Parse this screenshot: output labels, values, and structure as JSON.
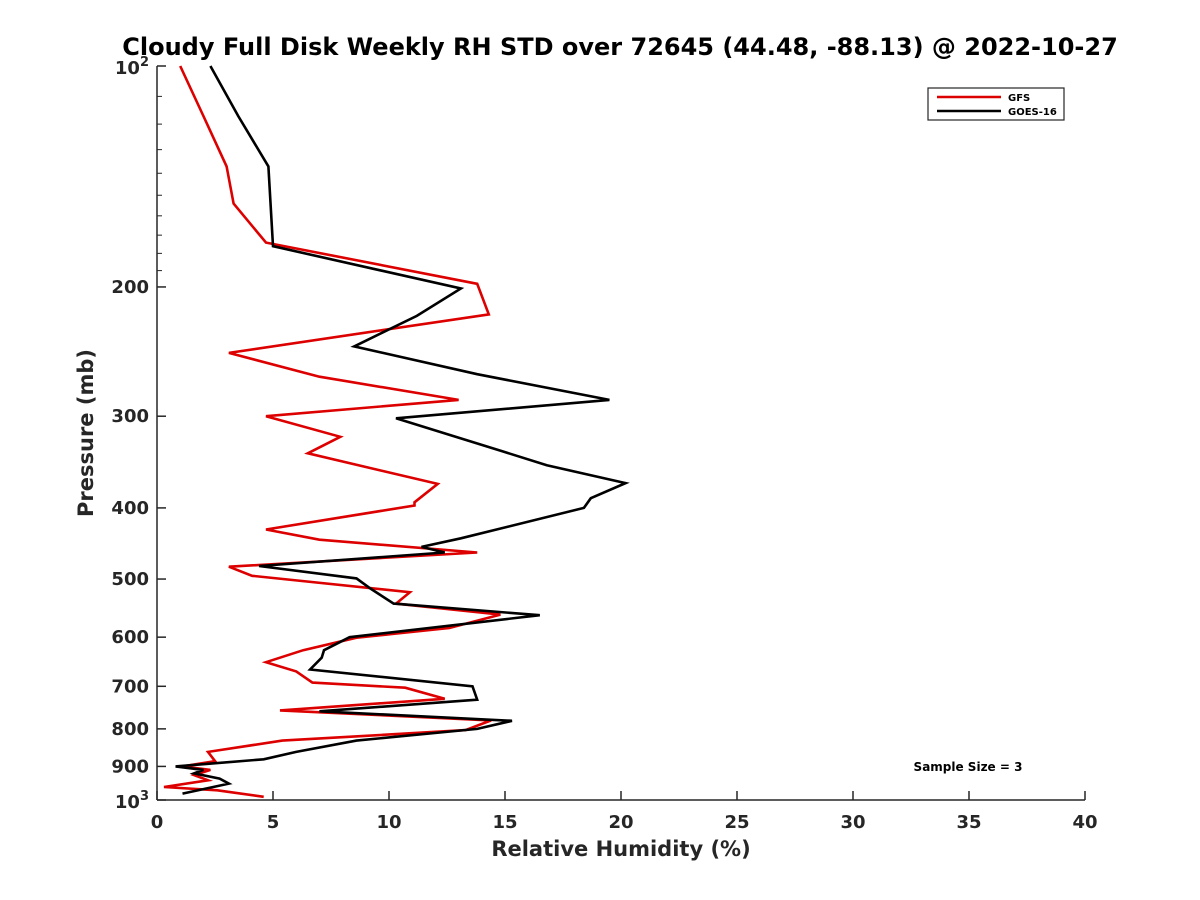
{
  "chart_data": {
    "type": "line",
    "title": "Cloudy Full Disk Weekly RH STD over 72645 (44.48, -88.13) @ 2022-10-27",
    "xlabel": "Relative Humidity (%)",
    "ylabel": "Pressure (mb)",
    "xlim": [
      0,
      40
    ],
    "ylim": [
      100,
      1000
    ],
    "yscale": "log",
    "y_reversed": true,
    "grid": false,
    "legend_position": "top-right",
    "x_ticks": [
      "0",
      "5",
      "10",
      "15",
      "20",
      "25",
      "30",
      "35",
      "40"
    ],
    "y_ticks": [
      {
        "value": 200,
        "label": "200"
      },
      {
        "value": 300,
        "label": "300"
      },
      {
        "value": 400,
        "label": "400"
      },
      {
        "value": 500,
        "label": "500"
      },
      {
        "value": 600,
        "label": "600"
      },
      {
        "value": 700,
        "label": "700"
      },
      {
        "value": 800,
        "label": "800"
      },
      {
        "value": 900,
        "label": "900"
      }
    ],
    "y_ticks_pow": [
      {
        "value": 100,
        "base": "10",
        "exp": "2"
      },
      {
        "value": 1000,
        "base": "10",
        "exp": "3"
      }
    ],
    "annotation": "Sample Size = 3",
    "series": [
      {
        "name": "GFS",
        "color": "#dd0000",
        "points": [
          [
            1.0,
            100
          ],
          [
            2.0,
            117
          ],
          [
            3.0,
            137
          ],
          [
            3.3,
            154
          ],
          [
            4.7,
            174
          ],
          [
            13.8,
            198
          ],
          [
            14.3,
            218
          ],
          [
            3.1,
            246
          ],
          [
            7.0,
            265
          ],
          [
            13.0,
            285
          ],
          [
            4.7,
            300
          ],
          [
            7.9,
            320
          ],
          [
            6.5,
            337
          ],
          [
            12.1,
            371
          ],
          [
            11.1,
            393
          ],
          [
            11.1,
            397
          ],
          [
            4.7,
            428
          ],
          [
            7.0,
            442
          ],
          [
            13.8,
            460
          ],
          [
            3.1,
            481
          ],
          [
            4.1,
            495
          ],
          [
            10.9,
            521
          ],
          [
            10.3,
            540
          ],
          [
            14.8,
            559
          ],
          [
            12.6,
            583
          ],
          [
            8.6,
            601
          ],
          [
            6.3,
            625
          ],
          [
            4.7,
            649
          ],
          [
            6.0,
            668
          ],
          [
            6.7,
            692
          ],
          [
            10.7,
            703
          ],
          [
            12.4,
            728
          ],
          [
            5.3,
            755
          ],
          [
            14.4,
            779
          ],
          [
            13.3,
            803
          ],
          [
            5.4,
            830
          ],
          [
            2.2,
            860
          ],
          [
            2.5,
            885
          ],
          [
            1.1,
            900
          ],
          [
            2.3,
            910
          ],
          [
            1.6,
            925
          ],
          [
            2.2,
            940
          ],
          [
            0.3,
            960
          ],
          [
            2.6,
            970
          ],
          [
            4.6,
            990
          ]
        ]
      },
      {
        "name": "GOES-16",
        "color": "#000000",
        "points": [
          [
            2.3,
            100
          ],
          [
            3.5,
            117
          ],
          [
            4.8,
            137
          ],
          [
            5.0,
            176
          ],
          [
            13.1,
            201
          ],
          [
            11.2,
            219
          ],
          [
            8.5,
            241
          ],
          [
            13.8,
            263
          ],
          [
            19.5,
            285
          ],
          [
            10.3,
            302
          ],
          [
            14.9,
            335
          ],
          [
            16.8,
            350
          ],
          [
            20.2,
            370
          ],
          [
            18.7,
            388
          ],
          [
            18.4,
            400
          ],
          [
            13.1,
            440
          ],
          [
            11.4,
            452
          ],
          [
            12.4,
            460
          ],
          [
            4.4,
            480
          ],
          [
            8.6,
            499
          ],
          [
            9.2,
            515
          ],
          [
            10.2,
            540
          ],
          [
            16.5,
            560
          ],
          [
            8.3,
            600
          ],
          [
            7.2,
            625
          ],
          [
            7.1,
            640
          ],
          [
            6.6,
            664
          ],
          [
            13.6,
            700
          ],
          [
            13.8,
            730
          ],
          [
            7.0,
            757
          ],
          [
            15.3,
            780
          ],
          [
            13.8,
            800
          ],
          [
            8.6,
            830
          ],
          [
            6.0,
            860
          ],
          [
            4.6,
            880
          ],
          [
            0.8,
            900
          ],
          [
            2.0,
            910
          ],
          [
            1.6,
            920
          ],
          [
            2.7,
            935
          ],
          [
            3.1,
            950
          ],
          [
            1.1,
            980
          ]
        ]
      }
    ]
  }
}
